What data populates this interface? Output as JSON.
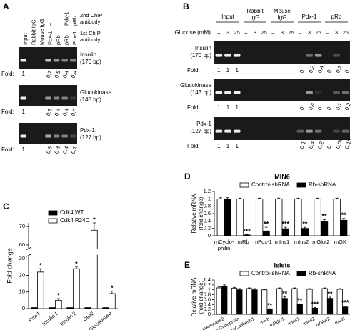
{
  "panel_labels": [
    "A",
    "B",
    "C",
    "D",
    "E"
  ],
  "gels": {
    "A": {
      "controls": [
        "Input",
        "Rabbit IgG",
        "Mouse IgG"
      ],
      "second_chip": [
        "–",
        "–",
        "Pdx-1",
        "pRb"
      ],
      "first_chip": [
        "Pdx-1",
        "pRb",
        "pRb",
        "Pdx-1"
      ],
      "row_labels": [
        [
          "2nd ChIP",
          "antibody"
        ],
        [
          "1st ChIP",
          "antibody"
        ]
      ],
      "fold_label": "Fold:",
      "blots": [
        {
          "target": "Insulin",
          "size": "(170 bp)",
          "fold": [
            "1",
            "0.7",
            "0.5",
            "0.4",
            "0.4"
          ]
        },
        {
          "target": "Glucokinase",
          "size": "(143 bp)",
          "fold": [
            "1",
            "0.5",
            "0.4",
            "0.4",
            "0.0"
          ]
        },
        {
          "target": "Pdx-1",
          "size": "(127 bp)",
          "fold": [
            "1",
            "0.6",
            "0.4",
            "0.4",
            "0.1"
          ]
        }
      ]
    },
    "B": {
      "groups": [
        [
          "Input"
        ],
        [
          "Rabbit",
          "IgG"
        ],
        [
          "Mouse",
          "IgG"
        ],
        [
          "Pdx-1"
        ],
        [
          "pRb"
        ]
      ],
      "glucose_label": "Glucose (mM):",
      "glucose": [
        "–",
        "3",
        "25"
      ],
      "fold_label": "Fold:",
      "blots": [
        {
          "target": "Insulin",
          "size": "(170 bp)",
          "fold_input": [
            "1",
            "1",
            "1"
          ],
          "fold_chip": [
            "0",
            "0.2",
            "0.4",
            "0",
            "0.1",
            "0"
          ]
        },
        {
          "target": "Glucokinase",
          "size": "(143 bp)",
          "fold_input": [
            "1",
            "1",
            "1"
          ],
          "fold_chip": [
            "0",
            "0.4",
            "0",
            "0",
            "0.1",
            "0.2"
          ]
        },
        {
          "target": "Pdx-1",
          "size": "(127 bp)",
          "fold_input": [
            "1",
            "1",
            "1"
          ],
          "fold_chip": [
            "0.1",
            "0.4",
            "0.2",
            "0",
            "0.05",
            "0.15"
          ]
        }
      ]
    }
  },
  "chart_data": [
    {
      "type": "bar",
      "ylabel": "Fold change",
      "categories": [
        "Pdx-1",
        "Insulin 1",
        "Insulin 2",
        "Glut2",
        "Glucokinase"
      ],
      "series": [
        {
          "name": "Cdk4 WT",
          "color": "#000000",
          "values": [
            0.6,
            0.6,
            0.6,
            0.6,
            0.6
          ]
        },
        {
          "name": "Cdk4 R24C",
          "color": "#ffffff",
          "values": [
            22,
            5,
            24,
            68,
            9
          ],
          "errors": [
            2,
            1,
            1,
            4,
            1.5
          ],
          "annotations": [
            "*",
            "*",
            "*",
            "*",
            "*"
          ]
        }
      ],
      "ylim": [
        0,
        72
      ],
      "yticks": [
        0,
        10,
        20,
        30,
        60,
        70
      ],
      "axis_break": [
        32,
        58
      ],
      "legend": "top-left"
    },
    {
      "type": "bar",
      "title": "MIN6",
      "ylabel": [
        "Relative mRNA",
        "(fold change)"
      ],
      "categories": [
        "mCyclo-philin",
        "mRb",
        "mPdx-1",
        "mIns1",
        "mIns2",
        "mGlut2",
        "mGK"
      ],
      "series": [
        {
          "name": "Control-shRNA",
          "color": "#ffffff",
          "values": [
            1,
            1,
            1,
            1,
            1,
            1,
            1
          ],
          "errors": [
            0.03,
            0.02,
            0.02,
            0.02,
            0.02,
            0.02,
            0.02
          ]
        },
        {
          "name": "Rb-shRNA",
          "color": "#000000",
          "values": [
            1,
            0.02,
            0.13,
            0.19,
            0.2,
            0.38,
            0.42
          ],
          "errors": [
            0.03,
            0.01,
            0.1,
            0.04,
            0.03,
            0.06,
            0.05
          ],
          "annotations": [
            null,
            "***",
            "**",
            "***",
            "**",
            "**",
            "**"
          ]
        }
      ],
      "ylim": [
        0,
        1.2
      ],
      "yticks": [
        0,
        0.2,
        0.4,
        0.6,
        0.8,
        1,
        1.2
      ],
      "legend": "top"
    },
    {
      "type": "bar",
      "title": "Islets",
      "ylabel": [
        "Relative mRNA",
        "(fold change)"
      ],
      "categories": [
        "mAmylase2",
        "mCyclophilin",
        "mCadherin1",
        "mRb",
        "mPdx-1",
        "mIns1",
        "mIns2",
        "mGlut2",
        "mGK"
      ],
      "series": [
        {
          "name": "Control-shRNA",
          "color": "#ffffff",
          "values": [
            1.08,
            1.07,
            1.05,
            1,
            1.05,
            1.05,
            1.02,
            1.05,
            1.02
          ],
          "errors": [
            0.04,
            0.03,
            0.03,
            0.03,
            0.03,
            0.03,
            0.03,
            0.03,
            0.03
          ]
        },
        {
          "name": "Rb-shRNA",
          "color": "#000000",
          "values": [
            1.15,
            1,
            1,
            0.2,
            0.65,
            0.4,
            0.25,
            0.65,
            0.3
          ],
          "errors": [
            0.05,
            0.05,
            0.05,
            0.03,
            0.06,
            0.03,
            0.03,
            0.05,
            0.04
          ],
          "annotations": [
            null,
            null,
            null,
            "**",
            "**",
            "**",
            "***",
            "**",
            "***"
          ]
        }
      ],
      "ylim": [
        0,
        1.4
      ],
      "yticks": [
        0,
        0.2,
        0.4,
        0.6,
        0.8,
        1,
        1.2,
        1.4
      ],
      "legend": "top"
    }
  ]
}
